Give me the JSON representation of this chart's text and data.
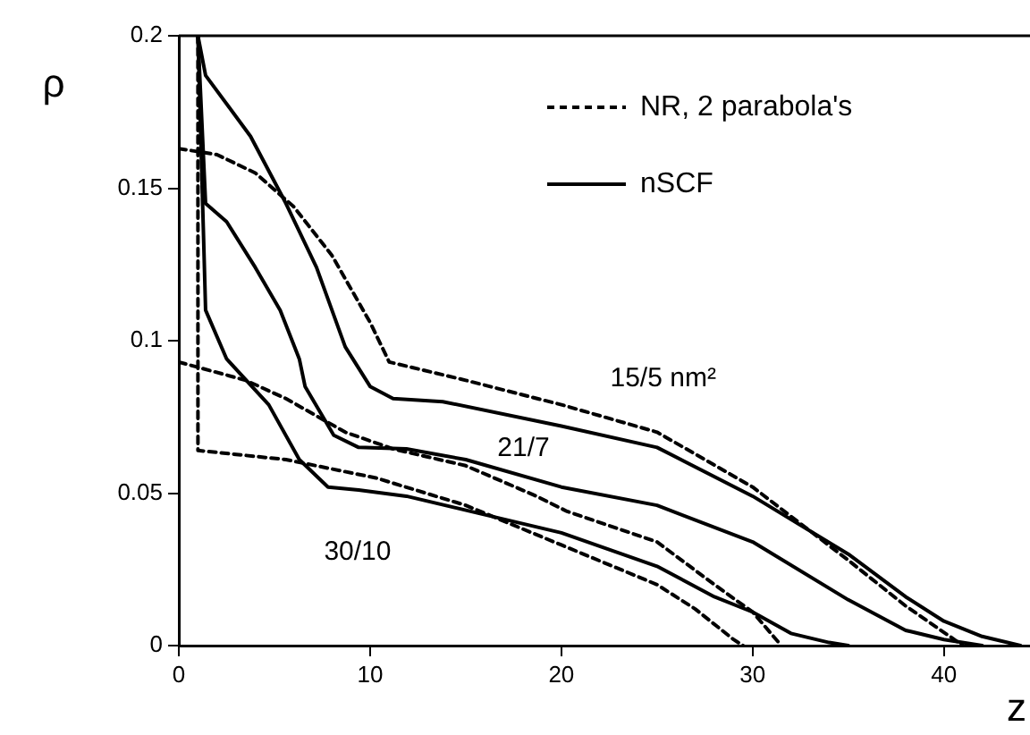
{
  "chart_data": {
    "type": "line",
    "xlabel": "z",
    "ylabel": "ρ",
    "xlim": [
      0,
      44.5
    ],
    "ylim": [
      0,
      0.2
    ],
    "xticks": [
      0,
      10,
      20,
      30,
      40
    ],
    "yticks": [
      0,
      0.05,
      0.1,
      0.15,
      0.2
    ],
    "grid": false,
    "legend": "top right",
    "marker": "none",
    "annotations": [
      "15/5 nm²",
      "21/7",
      "30/10"
    ],
    "series": [
      {
        "name": "NR, 2 parabola's",
        "color": "#000000",
        "line_style": "dashed",
        "x": [
          0,
          2,
          4,
          6,
          8,
          10,
          11,
          15,
          20,
          25,
          30,
          35,
          38,
          41
        ],
        "values": [
          0.163,
          0.161,
          0.155,
          0.144,
          0.128,
          0.106,
          0.093,
          0.087,
          0.079,
          0.07,
          0.052,
          0.028,
          0.013,
          0
        ]
      },
      {
        "name": "nSCF",
        "color": "#000000",
        "line_style": "solid",
        "x": [
          1,
          1.4,
          3.75,
          5.6,
          7.2,
          8.7,
          10,
          11.2,
          13.8,
          20,
          25,
          30,
          35,
          38,
          40,
          42,
          44
        ],
        "values": [
          0.2,
          0.187,
          0.167,
          0.145,
          0.124,
          0.098,
          0.085,
          0.081,
          0.08,
          0.072,
          0.065,
          0.049,
          0.03,
          0.016,
          0.008,
          0.003,
          0
        ]
      },
      {
        "color": "#000000",
        "line_style": "dashed",
        "x": [
          0,
          3.5,
          5.6,
          8.7,
          11.2,
          15,
          18.7,
          20.3,
          25,
          28,
          30,
          31.5
        ],
        "values": [
          0.093,
          0.087,
          0.081,
          0.07,
          0.0645,
          0.059,
          0.049,
          0.044,
          0.034,
          0.02,
          0.011,
          0
        ]
      },
      {
        "color": "#000000",
        "line_style": "solid",
        "x": [
          1,
          1.4,
          2.5,
          4,
          5.3,
          6.3,
          6.6,
          8.1,
          9.4,
          11.9,
          15,
          20,
          25,
          30,
          35,
          38,
          40,
          42
        ],
        "values": [
          0.2,
          0.145,
          0.139,
          0.124,
          0.11,
          0.094,
          0.085,
          0.069,
          0.065,
          0.0645,
          0.061,
          0.052,
          0.046,
          0.034,
          0.015,
          0.005,
          0.002,
          0
        ]
      },
      {
        "color": "#000000",
        "line_style": "dashed",
        "x": [
          1,
          1,
          5.6,
          10.3,
          15,
          20,
          25,
          27,
          29,
          29.5
        ],
        "values": [
          0.2,
          0.064,
          0.061,
          0.055,
          0.046,
          0.033,
          0.02,
          0.012,
          0.002,
          0
        ]
      },
      {
        "color": "#000000",
        "line_style": "solid",
        "x": [
          1,
          1.4,
          2.5,
          4.7,
          6.3,
          7.8,
          9.4,
          11.9,
          15.6,
          20,
          25,
          28,
          30,
          32,
          34,
          35
        ],
        "values": [
          0.2,
          0.11,
          0.094,
          0.079,
          0.061,
          0.052,
          0.051,
          0.049,
          0.0435,
          0.037,
          0.026,
          0.016,
          0.011,
          0.004,
          0.001,
          0
        ]
      }
    ]
  }
}
